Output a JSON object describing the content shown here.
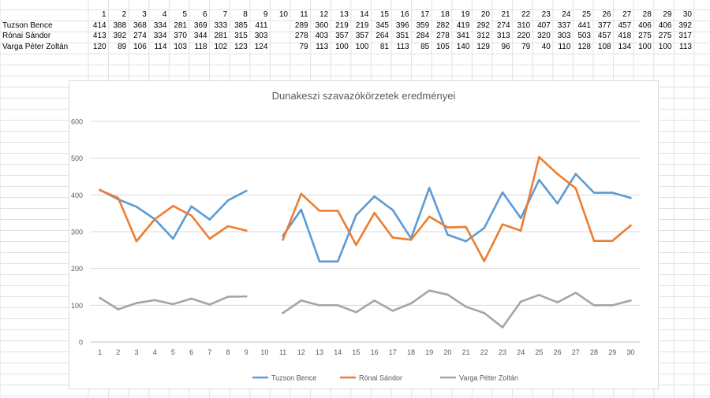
{
  "sheet": {
    "col_headers": [
      "1",
      "2",
      "3",
      "4",
      "5",
      "6",
      "7",
      "8",
      "9",
      "10",
      "11",
      "12",
      "13",
      "14",
      "15",
      "16",
      "17",
      "18",
      "19",
      "20",
      "21",
      "22",
      "23",
      "24",
      "25",
      "26",
      "27",
      "28",
      "29",
      "30"
    ],
    "rows": [
      {
        "name": "Tuzson Bence",
        "values": [
          "414",
          "388",
          "368",
          "334",
          "281",
          "369",
          "333",
          "385",
          "411",
          "",
          "289",
          "360",
          "219",
          "219",
          "345",
          "396",
          "359",
          "282",
          "419",
          "292",
          "274",
          "310",
          "407",
          "337",
          "441",
          "377",
          "457",
          "406",
          "406",
          "392"
        ]
      },
      {
        "name": "Rónai Sándor",
        "values": [
          "413",
          "392",
          "274",
          "334",
          "370",
          "344",
          "281",
          "315",
          "303",
          "",
          "278",
          "403",
          "357",
          "357",
          "264",
          "351",
          "284",
          "278",
          "341",
          "312",
          "313",
          "220",
          "320",
          "303",
          "503",
          "457",
          "418",
          "275",
          "275",
          "317"
        ]
      },
      {
        "name": "Varga Péter Zoltán",
        "values": [
          "120",
          "89",
          "106",
          "114",
          "103",
          "118",
          "102",
          "123",
          "124",
          "",
          "79",
          "113",
          "100",
          "100",
          "81",
          "113",
          "85",
          "105",
          "140",
          "129",
          "96",
          "79",
          "40",
          "110",
          "128",
          "108",
          "134",
          "100",
          "100",
          "113"
        ]
      }
    ]
  },
  "chart_data": {
    "type": "line",
    "title": "Dunakeszi szavazókörzetek eredményei",
    "xlabel": "",
    "ylabel": "",
    "categories": [
      "1",
      "2",
      "3",
      "4",
      "5",
      "6",
      "7",
      "8",
      "9",
      "10",
      "11",
      "12",
      "13",
      "14",
      "15",
      "16",
      "17",
      "18",
      "19",
      "20",
      "21",
      "22",
      "23",
      "24",
      "25",
      "26",
      "27",
      "28",
      "29",
      "30"
    ],
    "ylim": [
      0,
      600
    ],
    "yticks": [
      "0",
      "100",
      "200",
      "300",
      "400",
      "500",
      "600"
    ],
    "grid": true,
    "legend": "bottom",
    "series": [
      {
        "name": "Tuzson Bence",
        "color": "#5b9bd5",
        "values": [
          414,
          388,
          368,
          334,
          281,
          369,
          333,
          385,
          411,
          null,
          289,
          360,
          219,
          219,
          345,
          396,
          359,
          282,
          419,
          292,
          274,
          310,
          407,
          337,
          441,
          377,
          457,
          406,
          406,
          392
        ]
      },
      {
        "name": "Rónai Sándor",
        "color": "#ed7d31",
        "values": [
          413,
          392,
          274,
          334,
          370,
          344,
          281,
          315,
          303,
          null,
          278,
          403,
          357,
          357,
          264,
          351,
          284,
          278,
          341,
          312,
          313,
          220,
          320,
          303,
          503,
          457,
          418,
          275,
          275,
          317
        ]
      },
      {
        "name": "Varga Péter Zoltán",
        "color": "#a5a5a5",
        "values": [
          120,
          89,
          106,
          114,
          103,
          118,
          102,
          123,
          124,
          null,
          79,
          113,
          100,
          100,
          81,
          113,
          85,
          105,
          140,
          129,
          96,
          79,
          40,
          110,
          128,
          108,
          134,
          100,
          100,
          113
        ]
      }
    ]
  }
}
